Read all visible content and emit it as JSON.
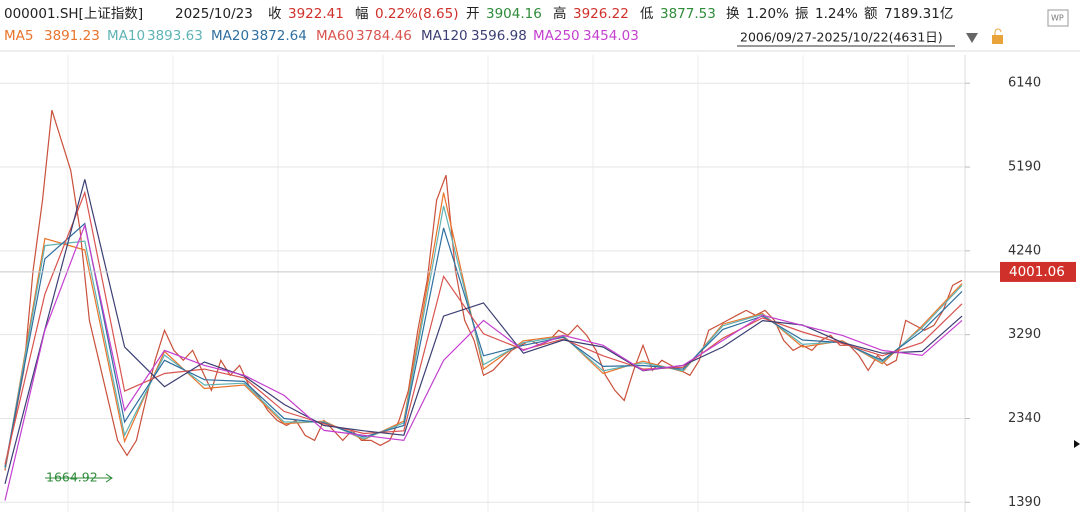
{
  "header": {
    "symbol": "000001.SH[上证指数]",
    "date": "2025/10/23",
    "items": [
      {
        "label": "收",
        "value": "3922.41",
        "tone": "red"
      },
      {
        "label": "幅",
        "value": "0.22%(8.65)",
        "tone": "red"
      },
      {
        "label": "开",
        "value": "3904.16",
        "tone": "green"
      },
      {
        "label": "高",
        "value": "3926.22",
        "tone": "red"
      },
      {
        "label": "低",
        "value": "3877.53",
        "tone": "green"
      },
      {
        "label": "换",
        "value": "1.20%",
        "tone": "plain"
      },
      {
        "label": "振",
        "value": "1.24%",
        "tone": "plain"
      },
      {
        "label": "额",
        "value": "7189.31亿",
        "tone": "plain"
      }
    ],
    "range": "2006/09/27-2025/10/22(4631日)"
  },
  "chart_data": {
    "type": "line",
    "color": "#c9503a",
    "values": [
      1750,
      2318,
      2885,
      4020,
      4813,
      5834,
      5494,
      5153,
      4473,
      3452,
      2999,
      2545,
      2092,
      1922,
      2092,
      2545,
      2999,
      3339,
      3112,
      2999,
      3112,
      2885,
      2658,
      2999,
      2829,
      2942,
      2715,
      2602,
      2432,
      2318,
      2262,
      2318,
      2148,
      2092,
      2318,
      2205,
      2092,
      2205,
      2092,
      2092,
      2035,
      2092,
      2318,
      2658,
      3339,
      3906,
      4813,
      5097,
      4020,
      3452,
      3225,
      2829,
      2885,
      2999,
      3112,
      3169,
      3225,
      3169,
      3225,
      3339,
      3282,
      3395,
      3282,
      3112,
      2829,
      2658,
      2545,
      2885,
      3169,
      2885,
      2999,
      2942,
      2885,
      2829,
      2999,
      3339,
      3395,
      3452,
      3509,
      3565,
      3509,
      3565,
      3452,
      3225,
      3112,
      3169,
      3112,
      3225,
      3282,
      3169,
      3169,
      3055,
      2885,
      3055,
      2942,
      2999,
      3452,
      3395,
      3339,
      3395,
      3565,
      3849,
      3906
    ],
    "series": [
      {
        "name": "MA5",
        "legend_value": "3891.23",
        "color": "#e8742c",
        "values": [
          1760,
          4380,
          4250,
          2080,
          3100,
          2680,
          2720,
          2280,
          2310,
          2100,
          2310,
          4900,
          2900,
          3220,
          3280,
          2850,
          2990,
          2870,
          3410,
          3530,
          3150,
          3220,
          2960,
          3390,
          3870
        ]
      },
      {
        "name": "MA10",
        "legend_value": "3893.63",
        "color": "#5fb3b3",
        "values": [
          1770,
          4300,
          4350,
          2150,
          3060,
          2720,
          2740,
          2300,
          2300,
          2110,
          2290,
          4750,
          2950,
          3200,
          3270,
          2880,
          2970,
          2880,
          3390,
          3520,
          3180,
          3210,
          2980,
          3370,
          3850
        ]
      },
      {
        "name": "MA20",
        "legend_value": "3872.64",
        "color": "#2f6fa0",
        "values": [
          1790,
          4150,
          4550,
          2300,
          3000,
          2780,
          2760,
          2340,
          2290,
          2130,
          2260,
          4500,
          3050,
          3170,
          3260,
          2930,
          2940,
          2900,
          3350,
          3500,
          3230,
          3200,
          3000,
          3330,
          3780
        ]
      },
      {
        "name": "MA60",
        "legend_value": "3784.46",
        "color": "#d9534f",
        "values": [
          1820,
          3750,
          4900,
          2650,
          2850,
          2900,
          2800,
          2420,
          2280,
          2170,
          2200,
          3950,
          3300,
          3120,
          3240,
          3050,
          2900,
          2920,
          3250,
          3480,
          3320,
          3190,
          3050,
          3200,
          3640
        ]
      },
      {
        "name": "MA120",
        "legend_value": "3596.98",
        "color": "#3b3f73",
        "values": [
          1600,
          3350,
          5050,
          3150,
          2700,
          2980,
          2820,
          2500,
          2260,
          2200,
          2150,
          3500,
          3650,
          3080,
          3230,
          3150,
          2880,
          2940,
          3150,
          3450,
          3400,
          3200,
          3080,
          3100,
          3500
        ]
      },
      {
        "name": "MA250",
        "legend_value": "3454.03",
        "color": "#c43fd0",
        "values": [
          1410,
          3340,
          4530,
          2430,
          3112,
          2942,
          2829,
          2602,
          2205,
          2148,
          2092,
          2999,
          3452,
          3112,
          3282,
          3169,
          2885,
          2942,
          3225,
          3509,
          3395,
          3282,
          3112,
          3055,
          3452
        ]
      }
    ],
    "ylim": [
      1280,
      6460
    ],
    "yticks": [
      1390,
      2340,
      3290,
      4240,
      5190,
      6140
    ],
    "grid": true,
    "last_price": {
      "value": 4001.06,
      "label": "4001.06"
    },
    "low": {
      "value": 1664.92,
      "label": "1664.92"
    }
  }
}
